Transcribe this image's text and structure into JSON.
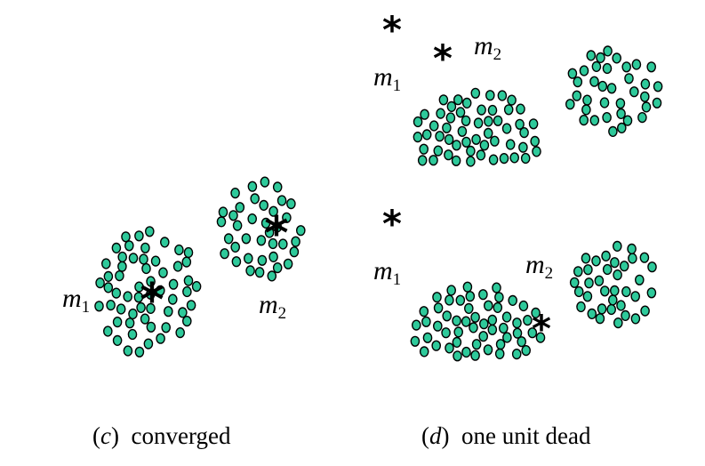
{
  "panels": [
    {
      "id": "c",
      "caption_letter": "c",
      "caption_text": "converged",
      "labels": [
        {
          "id": "m1",
          "base": "m",
          "sub": "1"
        },
        {
          "id": "m2",
          "base": "m",
          "sub": "2"
        }
      ],
      "prototypes": [
        {
          "id": "m1-star"
        },
        {
          "id": "m2-star"
        }
      ],
      "clusters": 2
    },
    {
      "id": "d-top",
      "labels": [
        {
          "id": "m1",
          "base": "m",
          "sub": "1"
        },
        {
          "id": "m2",
          "base": "m",
          "sub": "2"
        }
      ],
      "prototypes": [
        {
          "id": "star-a"
        },
        {
          "id": "star-b"
        }
      ],
      "clusters": 2
    },
    {
      "id": "d-bottom",
      "caption_letter": "d",
      "caption_text": "one unit dead",
      "labels": [
        {
          "id": "m1",
          "base": "m",
          "sub": "1"
        },
        {
          "id": "m2",
          "base": "m",
          "sub": "2"
        }
      ],
      "prototypes": [
        {
          "id": "star-a"
        },
        {
          "id": "star-b"
        }
      ],
      "clusters": 2
    }
  ],
  "captions": {
    "c_letter": "c",
    "c_text": "converged",
    "d_letter": "d",
    "d_text": "one unit dead"
  },
  "colors": {
    "point_fill": "#2ec99a",
    "point_stroke": "#000000",
    "prototype": "#000000"
  }
}
